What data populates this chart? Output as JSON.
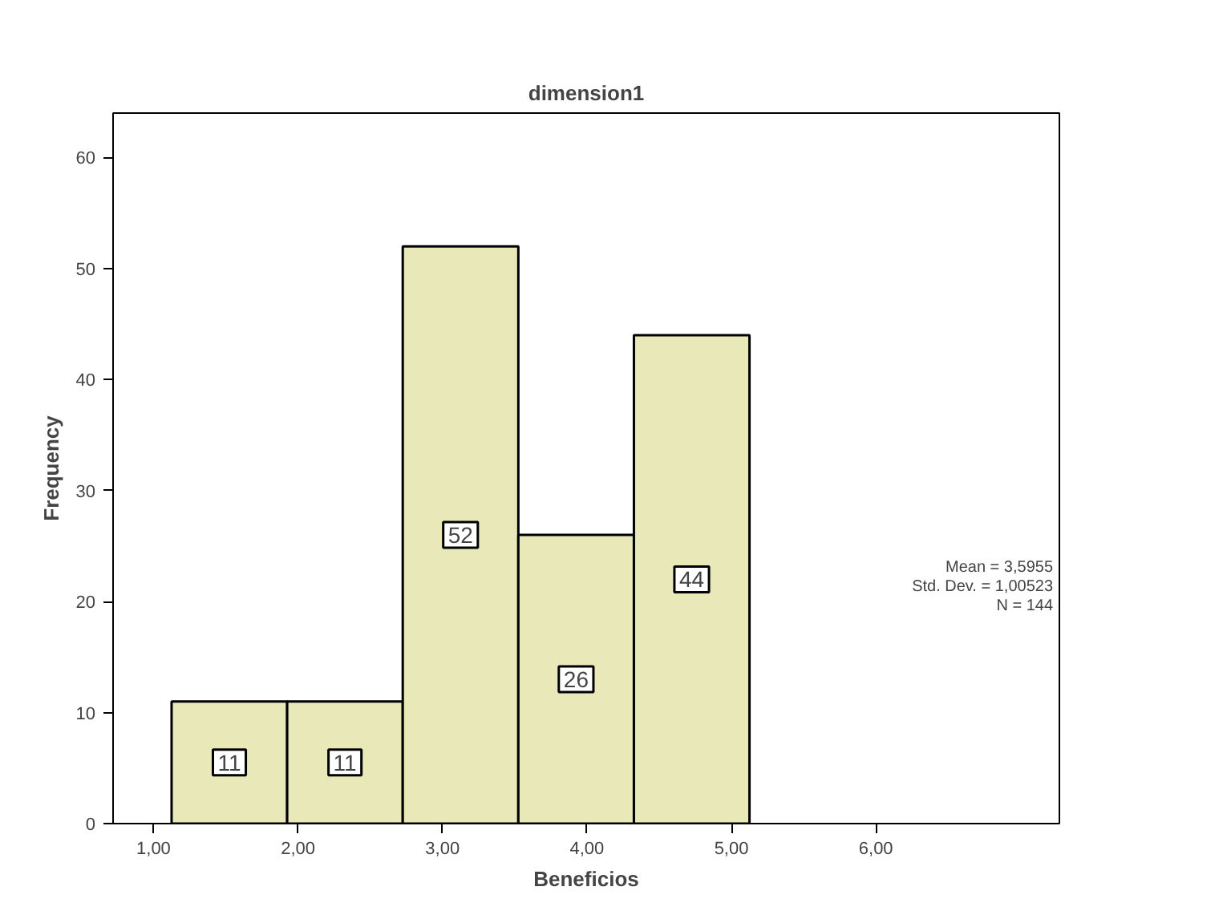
{
  "chart_data": {
    "type": "histogram",
    "title": "dimension1",
    "xlabel": "Beneficios",
    "ylabel": "Frequency",
    "bins": [
      1.125,
      1.925,
      2.725,
      3.525,
      4.325,
      5.125
    ],
    "values": [
      11,
      11,
      52,
      26,
      44
    ],
    "color": "#e9e8b9",
    "data_labels": true,
    "xlim": [
      0.72,
      7.27
    ],
    "ylim": [
      0,
      64
    ],
    "xticks": [
      {
        "value": 1,
        "label": "1,00"
      },
      {
        "value": 2,
        "label": "2,00"
      },
      {
        "value": 3,
        "label": "3,00"
      },
      {
        "value": 4,
        "label": "4,00"
      },
      {
        "value": 5,
        "label": "5,00"
      },
      {
        "value": 6,
        "label": "6,00"
      }
    ],
    "yticks": [
      0,
      10,
      20,
      30,
      40,
      50,
      60
    ],
    "grid": false,
    "annotations": [
      "Mean = 3,5955",
      "Std. Dev. = 1,00523",
      "N = 144"
    ]
  }
}
